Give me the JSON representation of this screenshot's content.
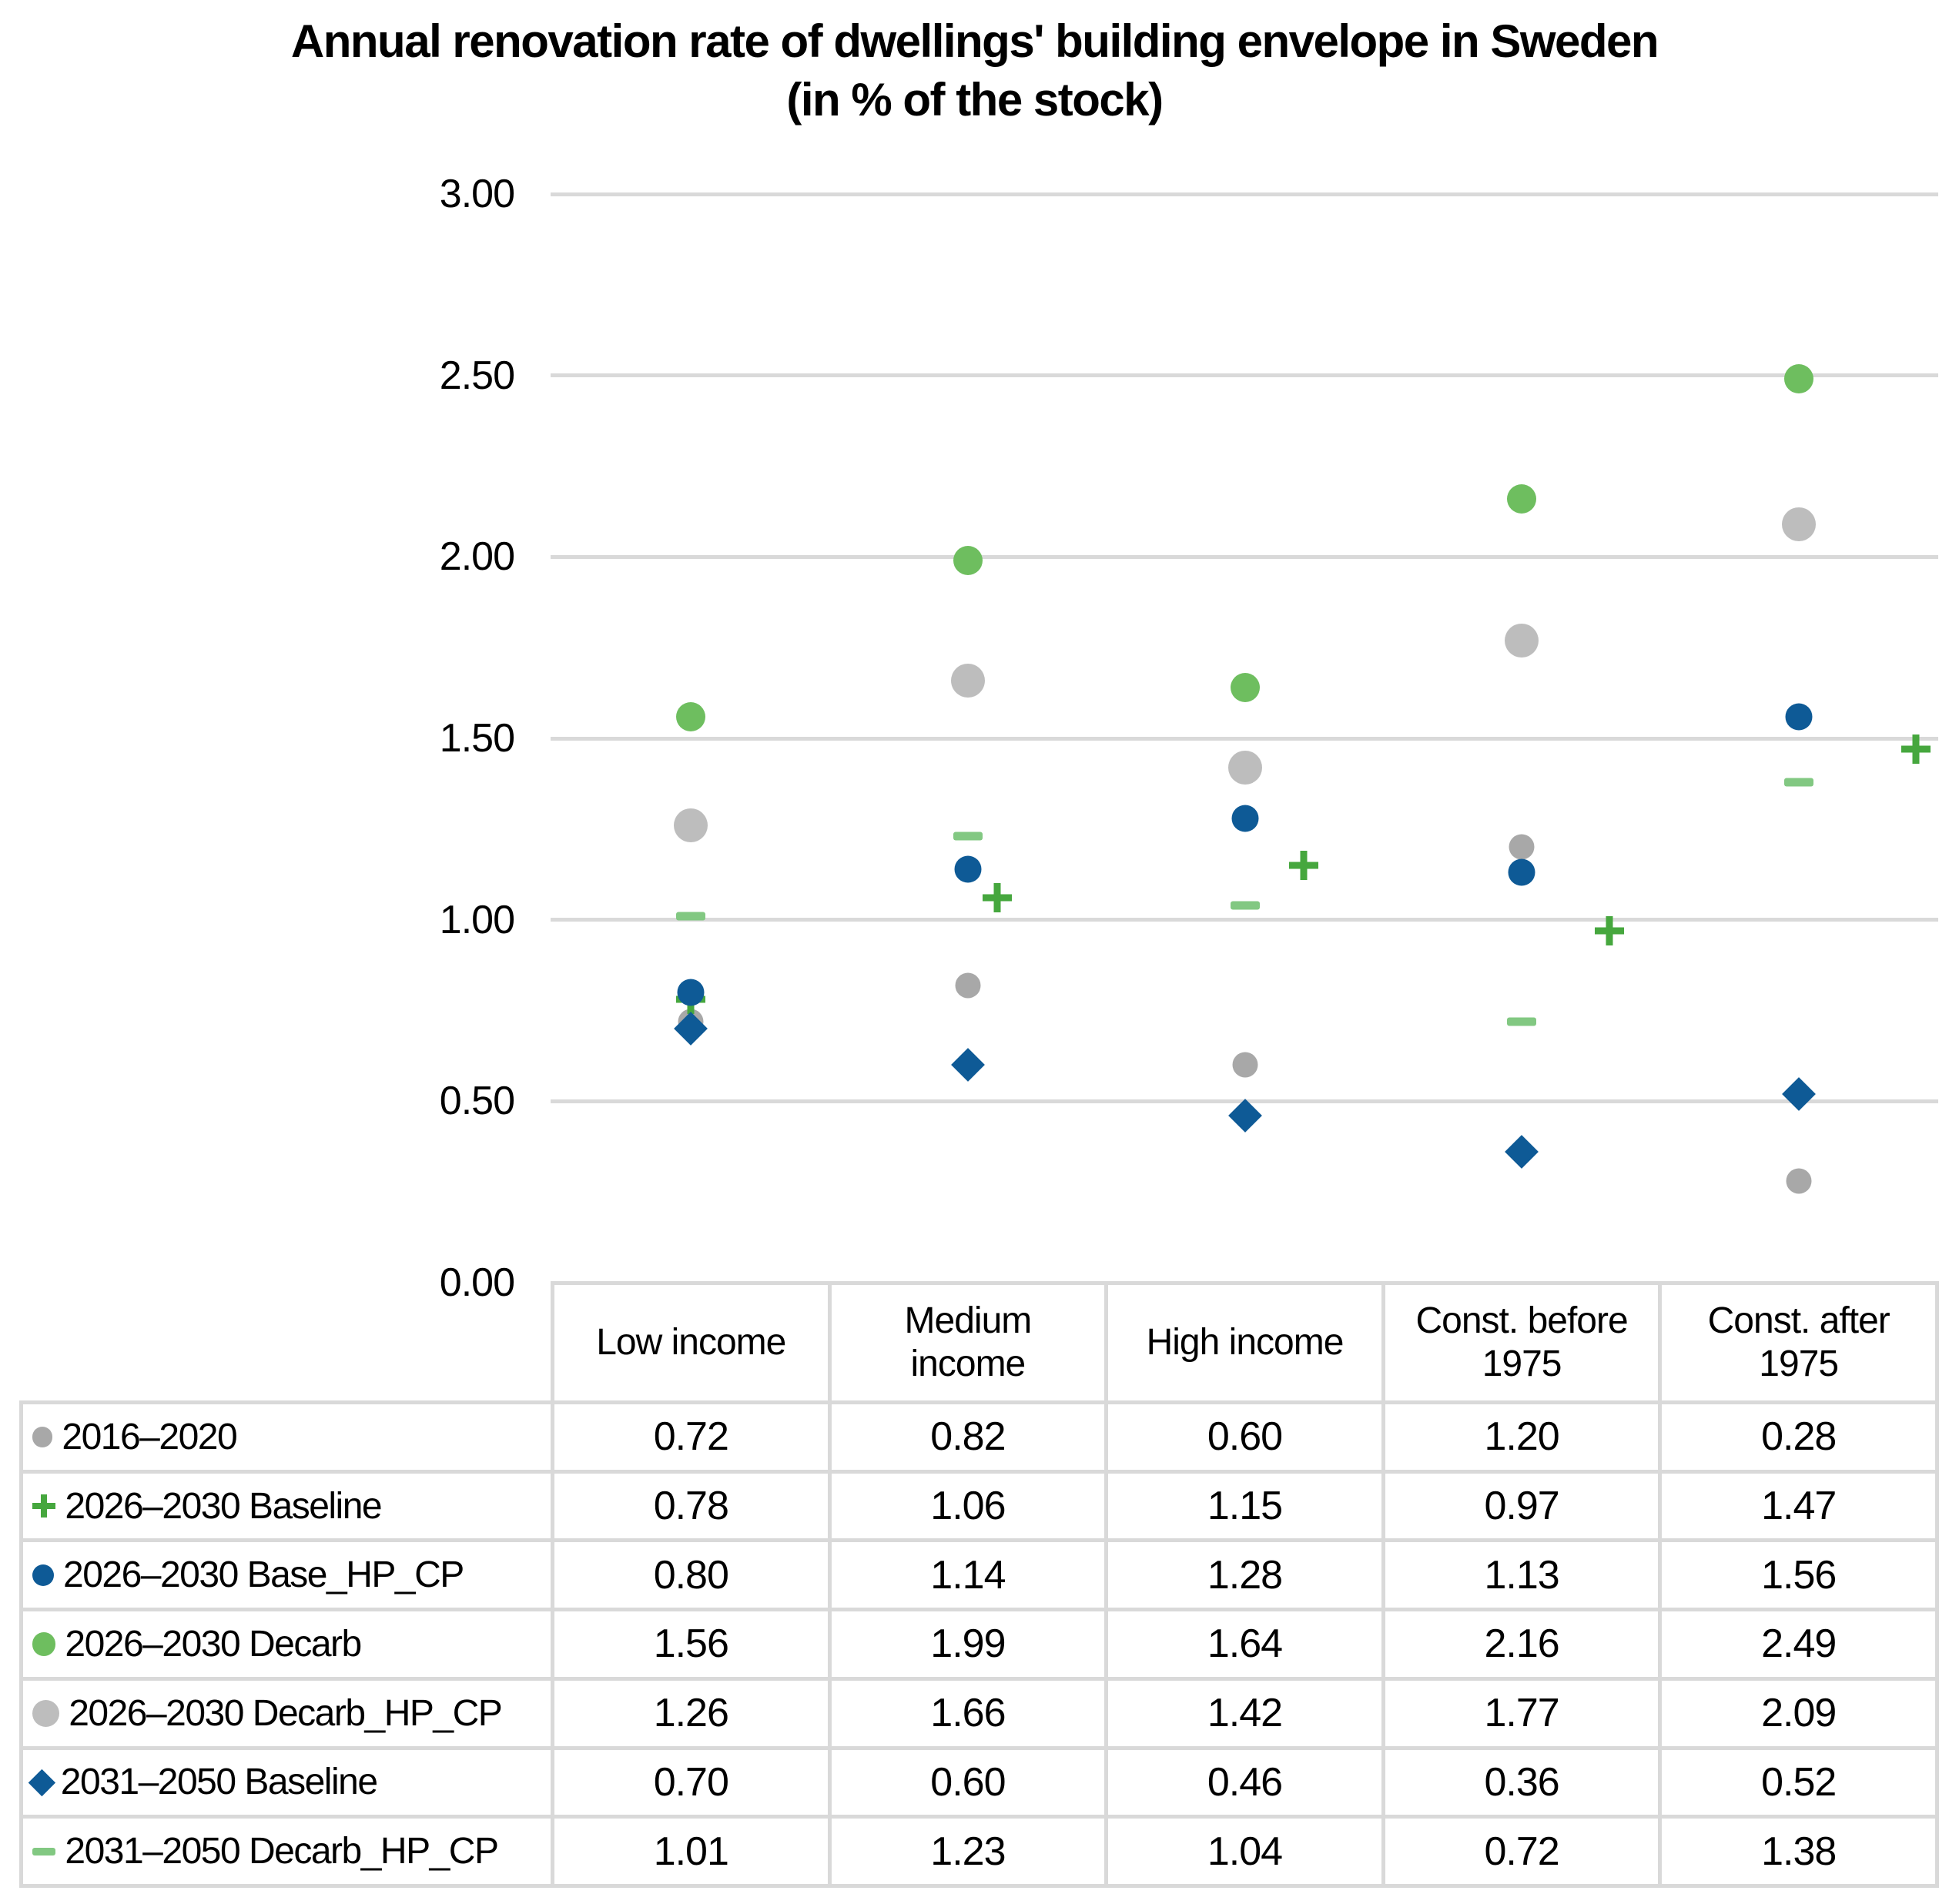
{
  "title": "Annual renovation rate of dwellings' building envelope in Sweden",
  "subtitle": "(in % of the stock)",
  "colors": {
    "gridline": "#D9D9D9",
    "table_border": "#D9D9D9",
    "gray_2016_2020": "#A8A8A8",
    "green_plus": "#46A73E",
    "blue": "#0E5A96",
    "green_circle": "#6EBE5F",
    "gray_light": "#BDBDBD",
    "green_dash": "#82C882",
    "background": "#FFFFFF",
    "text": "#000000"
  },
  "chart_data": {
    "type": "scatter",
    "categories": [
      "Low income",
      "Medium income",
      "High income",
      "Const. before 1975",
      "Const. after 1975"
    ],
    "title": "Annual renovation rate of dwellings' building envelope in Sweden",
    "subtitle": "(in % of the stock)",
    "xlabel": "",
    "ylabel": "",
    "ylim": [
      0.0,
      3.0
    ],
    "y_tick_step": 0.5,
    "y_tick_labels": [
      "0.00",
      "0.50",
      "1.00",
      "1.50",
      "2.00",
      "2.50",
      "3.00"
    ],
    "grid": true,
    "legend_position": "table-left",
    "series": [
      {
        "name": "2016–2020",
        "marker": "circle",
        "color": "#A8A8A8",
        "size": 33,
        "values": [
          0.72,
          0.82,
          0.6,
          1.2,
          0.28
        ]
      },
      {
        "name": "2026–2030 Baseline",
        "marker": "plus",
        "color": "#46A73E",
        "size": 38,
        "values": [
          0.78,
          1.06,
          1.15,
          0.97,
          1.47
        ]
      },
      {
        "name": "2026–2030 Base_HP_CP",
        "marker": "circle",
        "color": "#0E5A96",
        "size": 35,
        "values": [
          0.8,
          1.14,
          1.28,
          1.13,
          1.56
        ]
      },
      {
        "name": "2026–2030 Decarb",
        "marker": "circle",
        "color": "#6EBE5F",
        "size": 38,
        "values": [
          1.56,
          1.99,
          1.64,
          2.16,
          2.49
        ]
      },
      {
        "name": "2026–2030 Decarb_HP_CP",
        "marker": "circle",
        "color": "#BDBDBD",
        "size": 44,
        "values": [
          1.26,
          1.66,
          1.42,
          1.77,
          2.09
        ]
      },
      {
        "name": "2031–2050 Baseline",
        "marker": "diamond",
        "color": "#0E5A96",
        "size": 31,
        "values": [
          0.7,
          0.6,
          0.46,
          0.36,
          0.52
        ]
      },
      {
        "name": "2031–2050 Decarb_HP_CP",
        "marker": "dash",
        "color": "#82C882",
        "size": 38,
        "values": [
          1.01,
          1.23,
          1.04,
          0.72,
          1.38
        ]
      }
    ]
  },
  "table": {
    "col_headers": [
      "Low income",
      "Medium\nincome",
      "High income",
      "Const. before\n1975",
      "Const. after\n1975"
    ]
  }
}
